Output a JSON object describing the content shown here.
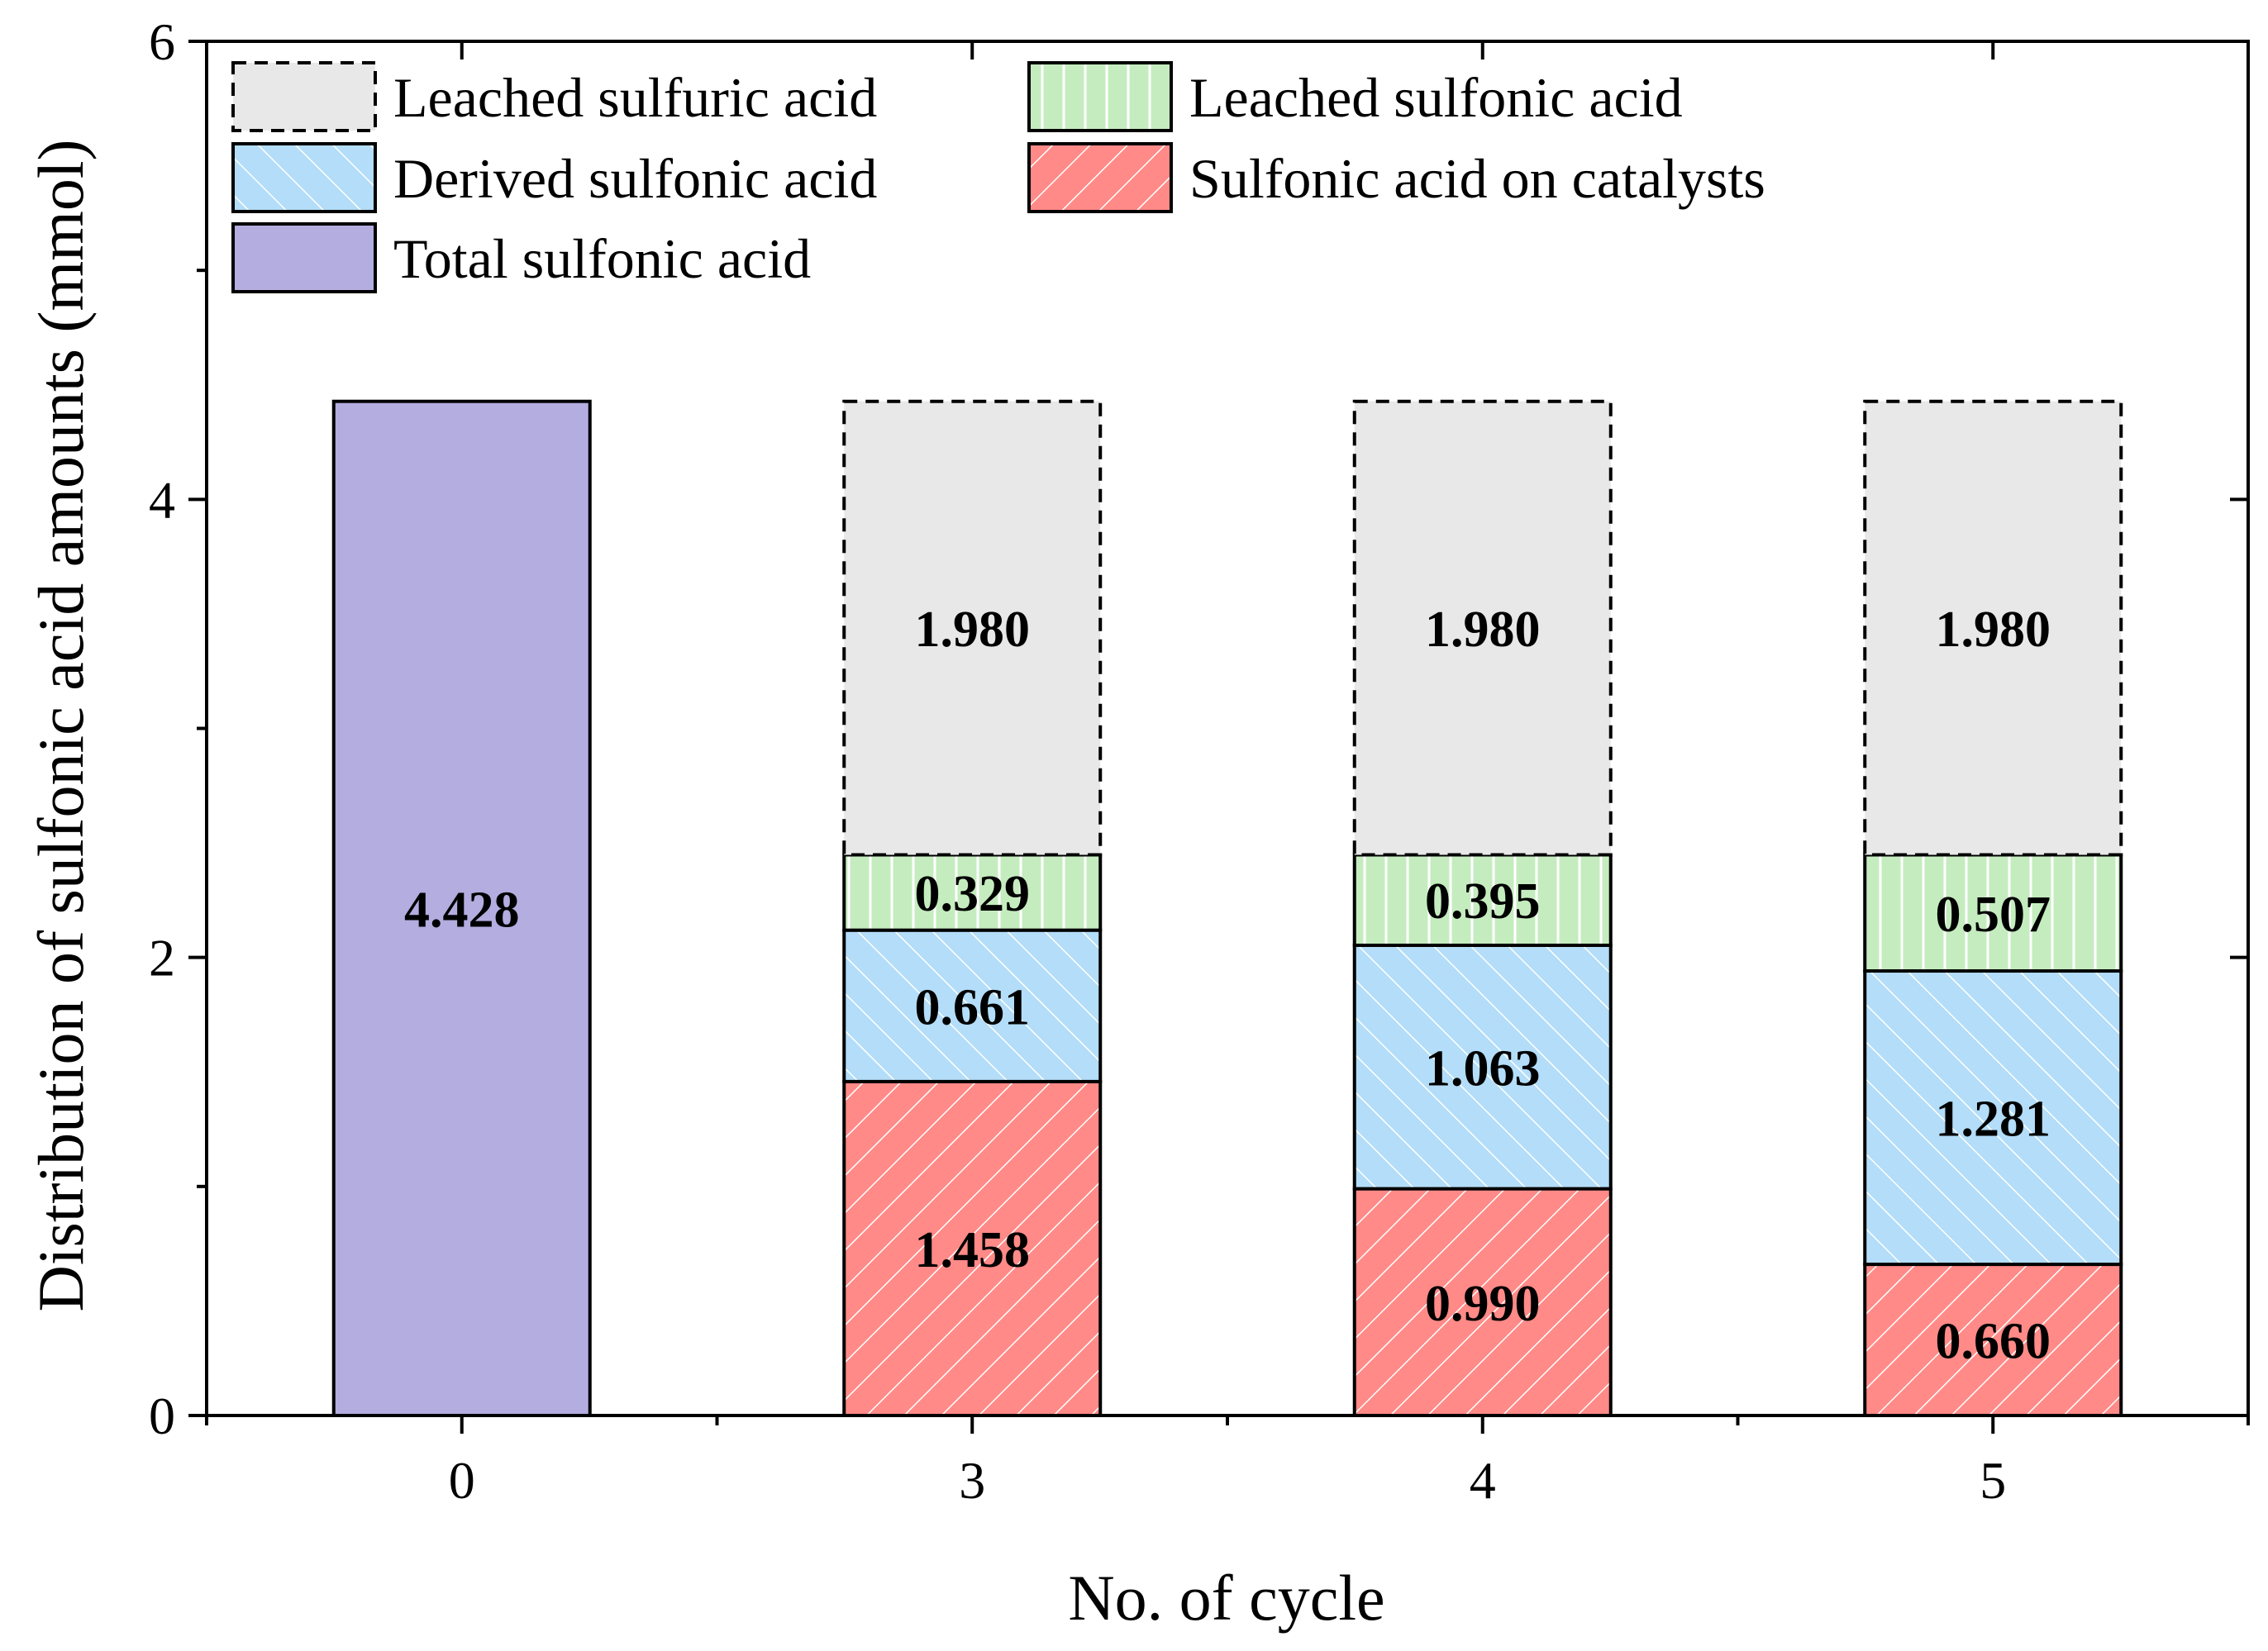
{
  "chart_data": {
    "type": "bar",
    "stacked": true,
    "categories": [
      "0",
      "3",
      "4",
      "5"
    ],
    "xlabel": "No. of cycle",
    "ylabel": "Distribution of sulfonic acid amounts (mmol)",
    "ylim": [
      0,
      6
    ],
    "yticks": [
      0,
      2,
      4,
      6
    ],
    "series": [
      {
        "name": "Total sulfonic acid",
        "key": "total",
        "color": "#b4ade0",
        "pattern": "none",
        "values": [
          4.428,
          null,
          null,
          null
        ],
        "labels": [
          "4.428",
          null,
          null,
          null
        ]
      },
      {
        "name": "Sulfonic acid on catalysts",
        "key": "catalyst",
        "color": "#ff8a87",
        "pattern": "diagonal-down",
        "values": [
          null,
          1.458,
          0.99,
          0.66
        ],
        "labels": [
          null,
          "1.458",
          "0.990",
          "0.660"
        ]
      },
      {
        "name": "Derived sulfonic acid",
        "key": "derived",
        "color": "#b3ddf8",
        "pattern": "diagonal-up",
        "values": [
          null,
          0.661,
          1.063,
          1.281
        ],
        "labels": [
          null,
          "0.661",
          "1.063",
          "1.281"
        ]
      },
      {
        "name": "Leached sulfonic acid",
        "key": "leached_sulfonic",
        "color": "#c5ecbf",
        "pattern": "vertical",
        "values": [
          null,
          0.329,
          0.395,
          0.507
        ],
        "labels": [
          null,
          "0.329",
          "0.395",
          "0.507"
        ]
      },
      {
        "name": "Leached sulfuric acid",
        "key": "leached_sulfuric",
        "color": "#e8e8e8",
        "pattern": "dashed-border",
        "values": [
          null,
          1.98,
          1.98,
          1.98
        ],
        "labels": [
          null,
          "1.980",
          "1.980",
          "1.980"
        ]
      }
    ],
    "legend": {
      "position": "top-left",
      "order": [
        "leached_sulfuric",
        "leached_sulfonic",
        "derived",
        "catalyst",
        "total"
      ]
    }
  }
}
